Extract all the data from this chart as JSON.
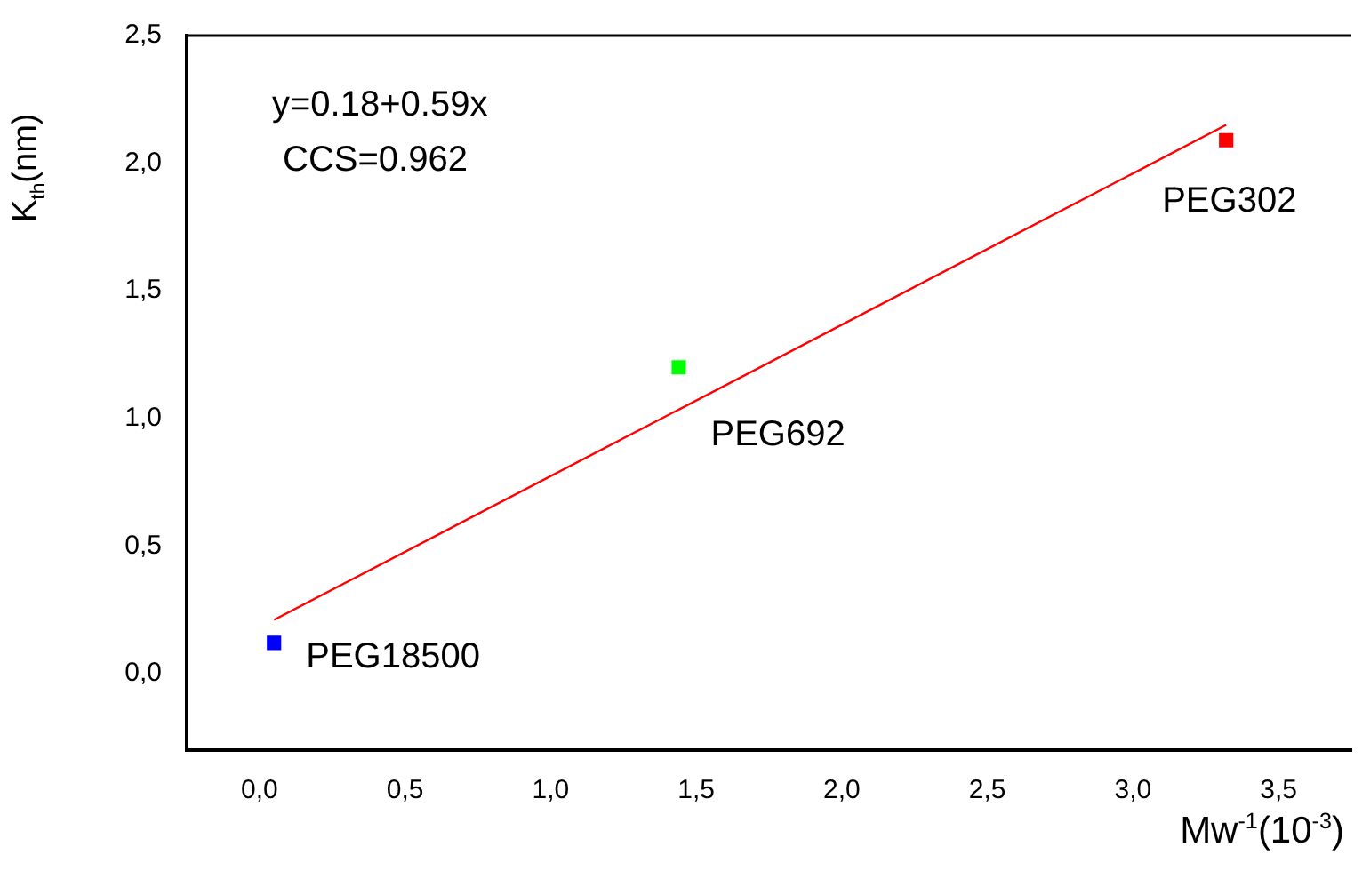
{
  "chart_data": {
    "type": "scatter",
    "xlabel": "Mw$^{-1}$(10$^{-3}$)",
    "ylabel": "K$_{th}$(nm)",
    "xlim": [
      -0.25,
      3.75
    ],
    "ylim": [
      -0.3,
      2.5
    ],
    "xticks": [
      {
        "value": 0,
        "label": "0,0"
      },
      {
        "value": 0.5,
        "label": "0,5"
      },
      {
        "value": 1,
        "label": "1,0"
      },
      {
        "value": 1.5,
        "label": "1,5"
      },
      {
        "value": 2,
        "label": "2,0"
      },
      {
        "value": 2.5,
        "label": "2,5"
      },
      {
        "value": 3,
        "label": "3,0"
      },
      {
        "value": 3.5,
        "label": "3,5"
      }
    ],
    "yticks": [
      {
        "value": 0,
        "label": "0,0"
      },
      {
        "value": 0.5,
        "label": "0,5"
      },
      {
        "value": 1,
        "label": "1,0"
      },
      {
        "value": 1.5,
        "label": "1,5"
      },
      {
        "value": 2,
        "label": "2,0"
      },
      {
        "value": 2.5,
        "label": "2,5"
      }
    ],
    "grid": false,
    "legend": false,
    "series": [
      {
        "marker": "square",
        "x": [
          0.05,
          1.44,
          3.32
        ],
        "values": [
          0.12,
          1.2,
          2.09
        ],
        "colors": [
          "#0000ff",
          "#00ff00",
          "#ff0000"
        ]
      },
      {
        "type": "line",
        "marker": "none",
        "x": [
          0.05,
          3.32
        ],
        "values": [
          0.21,
          2.15
        ],
        "color": "#ff0000"
      }
    ],
    "annotations": [
      "y=0.18+0.59x",
      "CCS=0.962",
      {
        "text": "PEG18500",
        "x": 0.05,
        "y": 0.12
      },
      {
        "text": "PEG692",
        "x": 1.44,
        "y": 1.2
      },
      {
        "text": "PEG302",
        "x": 3.32,
        "y": 2.09
      }
    ]
  }
}
